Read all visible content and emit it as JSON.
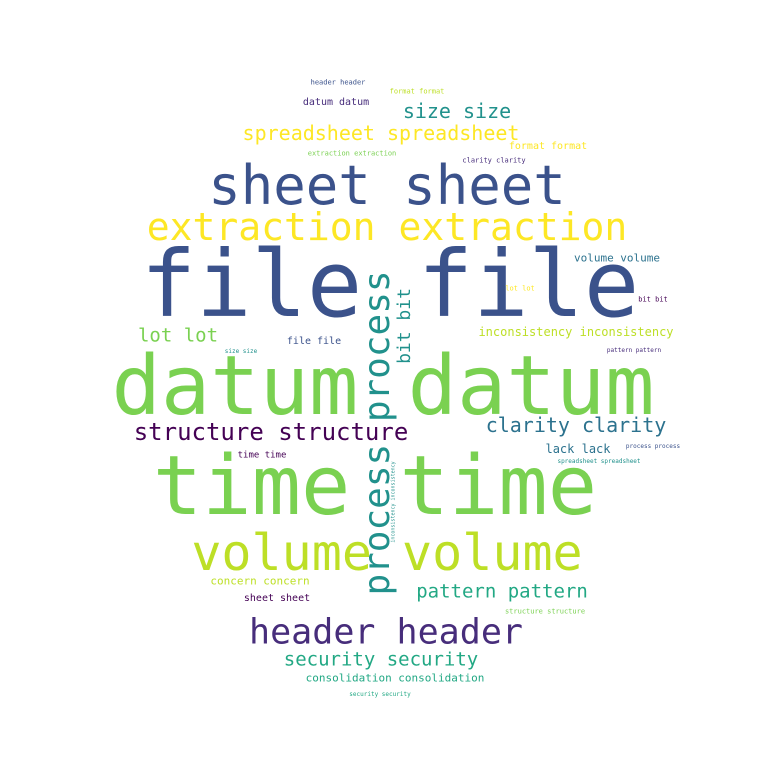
{
  "words": [
    {
      "text": "file file",
      "color": "#3b528b"
    },
    {
      "text": "datum datum",
      "color": "#7ad151"
    },
    {
      "text": "time time",
      "color": "#7ad151"
    },
    {
      "text": "sheet sheet",
      "color": "#3b528b"
    },
    {
      "text": "volume volume",
      "color": "#bddf26"
    },
    {
      "text": "extraction extraction",
      "color": "#fde725"
    },
    {
      "text": "process process",
      "color": "#21918c"
    },
    {
      "text": "header header",
      "color": "#472d7b"
    },
    {
      "text": "structure structure",
      "color": "#440154"
    },
    {
      "text": "spreadsheet spreadsheet",
      "color": "#fde725"
    },
    {
      "text": "clarity clarity",
      "color": "#2c728e"
    },
    {
      "text": "size size",
      "color": "#21918c"
    },
    {
      "text": "pattern pattern",
      "color": "#22a884"
    },
    {
      "text": "security security",
      "color": "#22a884"
    },
    {
      "text": "lot lot",
      "color": "#7ad151"
    },
    {
      "text": "bit bit",
      "color": "#21918c"
    },
    {
      "text": "lack lack",
      "color": "#2c728e"
    },
    {
      "text": "volume volume",
      "color": "#2c728e"
    },
    {
      "text": "inconsistency inconsistency",
      "color": "#bddf26"
    },
    {
      "text": "consolidation consolidation",
      "color": "#22a884"
    },
    {
      "text": "concern concern",
      "color": "#bddf26"
    },
    {
      "text": "datum datum",
      "color": "#472d7b"
    },
    {
      "text": "format format",
      "color": "#fde725"
    },
    {
      "text": "file file",
      "color": "#3b528b"
    },
    {
      "text": "sheet sheet",
      "color": "#440154"
    },
    {
      "text": "time time",
      "color": "#440154"
    },
    {
      "text": "header header",
      "color": "#3b528b"
    },
    {
      "text": "format format",
      "color": "#bddf26"
    },
    {
      "text": "extraction extraction",
      "color": "#7ad151"
    },
    {
      "text": "clarity clarity",
      "color": "#472d7b"
    },
    {
      "text": "lot lot",
      "color": "#fde725"
    },
    {
      "text": "bit bit",
      "color": "#440154"
    },
    {
      "text": "pattern pattern",
      "color": "#472d7b"
    },
    {
      "text": "size size",
      "color": "#21918c"
    },
    {
      "text": "process process",
      "color": "#3b528b"
    },
    {
      "text": "spreadsheet spreadsheet",
      "color": "#21918c"
    },
    {
      "text": "structure structure",
      "color": "#7ad151"
    },
    {
      "text": "security security",
      "color": "#22a884"
    },
    {
      "text": "inconsistency inconsistency",
      "color": "#21918c"
    }
  ]
}
